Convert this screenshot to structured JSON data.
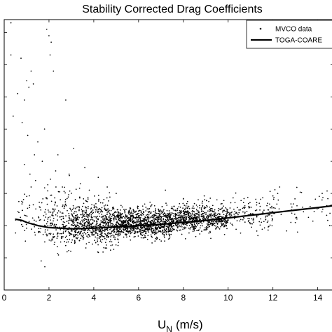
{
  "chart_data": {
    "type": "scatter",
    "title": "Stability Corrected Drag Coefficients",
    "xlabel": "U",
    "xlabel_subscript": "N",
    "xlabel_unit": "(m/s)",
    "ylabel": "",
    "xlim": [
      0,
      14.7
    ],
    "ylim": [
      0,
      4.2
    ],
    "x_ticks": [
      "0",
      "2",
      "4",
      "6",
      "8",
      "10",
      "12",
      "14"
    ],
    "y_ticks": [
      0.5,
      1.0,
      1.5,
      2.0,
      2.5,
      3.0,
      3.5,
      4.0
    ],
    "grid": false,
    "legend_position": "top-right",
    "series": [
      {
        "name": "MVCO data",
        "kind": "scatter",
        "color": "#000000",
        "cloud": [
          {
            "x_min": 0.5,
            "x_max": 1.8,
            "y_mean": 1.15,
            "y_sd": 0.18,
            "count": 60
          },
          {
            "x_min": 1.8,
            "x_max": 3.0,
            "y_mean": 1.05,
            "y_sd": 0.22,
            "count": 200
          },
          {
            "x_min": 3.0,
            "x_max": 5.0,
            "y_mean": 1.0,
            "y_sd": 0.16,
            "count": 650
          },
          {
            "x_min": 5.0,
            "x_max": 7.5,
            "y_mean": 1.02,
            "y_sd": 0.11,
            "count": 1000
          },
          {
            "x_min": 7.5,
            "x_max": 10.0,
            "y_mean": 1.1,
            "y_sd": 0.1,
            "count": 700
          },
          {
            "x_min": 10.0,
            "x_max": 12.0,
            "y_mean": 1.17,
            "y_sd": 0.12,
            "count": 150
          },
          {
            "x_min": 12.0,
            "x_max": 14.6,
            "y_mean": 1.27,
            "y_sd": 0.14,
            "count": 50
          }
        ],
        "points": [
          {
            "x": 0.3,
            "y": 3.65
          },
          {
            "x": 0.6,
            "y": 3.05
          },
          {
            "x": 0.75,
            "y": 3.6
          },
          {
            "x": 0.9,
            "y": 2.95
          },
          {
            "x": 1.0,
            "y": 3.25
          },
          {
            "x": 1.1,
            "y": 3.15
          },
          {
            "x": 1.2,
            "y": 3.4
          },
          {
            "x": 1.3,
            "y": 3.2
          },
          {
            "x": 0.8,
            "y": 2.6
          },
          {
            "x": 1.05,
            "y": 2.4
          },
          {
            "x": 1.35,
            "y": 2.1
          },
          {
            "x": 0.9,
            "y": 1.95
          },
          {
            "x": 1.15,
            "y": 1.8
          },
          {
            "x": 1.2,
            "y": 1.6
          },
          {
            "x": 1.4,
            "y": 1.7
          },
          {
            "x": 0.4,
            "y": 2.7
          },
          {
            "x": 1.5,
            "y": 2.3
          },
          {
            "x": 1.7,
            "y": 2.0
          },
          {
            "x": 1.8,
            "y": 2.5
          },
          {
            "x": 1.9,
            "y": 4.05
          },
          {
            "x": 2.0,
            "y": 3.95
          },
          {
            "x": 2.1,
            "y": 3.85
          },
          {
            "x": 2.2,
            "y": 3.4
          },
          {
            "x": 2.05,
            "y": 3.65
          },
          {
            "x": 2.3,
            "y": 1.85
          },
          {
            "x": 2.4,
            "y": 2.1
          },
          {
            "x": 2.6,
            "y": 1.6
          },
          {
            "x": 2.75,
            "y": 2.95
          },
          {
            "x": 2.9,
            "y": 1.8
          },
          {
            "x": 3.1,
            "y": 2.2
          },
          {
            "x": 3.4,
            "y": 1.65
          },
          {
            "x": 3.6,
            "y": 1.9
          },
          {
            "x": 3.8,
            "y": 1.55
          },
          {
            "x": 4.2,
            "y": 1.75
          },
          {
            "x": 4.6,
            "y": 1.6
          },
          {
            "x": 5.0,
            "y": 1.5
          },
          {
            "x": 0.3,
            "y": 4.15
          },
          {
            "x": 1.6,
            "y": 0.9
          },
          {
            "x": 1.65,
            "y": 0.45
          },
          {
            "x": 2.7,
            "y": 1.05
          },
          {
            "x": 7.2,
            "y": 1.55
          },
          {
            "x": 8.0,
            "y": 1.42
          },
          {
            "x": 9.5,
            "y": 1.4
          },
          {
            "x": 13.1,
            "y": 0.9
          },
          {
            "x": 12.8,
            "y": 1.05
          },
          {
            "x": 14.2,
            "y": 1.5
          },
          {
            "x": 14.6,
            "y": 1.32
          },
          {
            "x": 12.3,
            "y": 1.6
          }
        ]
      },
      {
        "name": "TOGA-COARE",
        "kind": "line",
        "color": "#000000",
        "x": [
          0.5,
          0.8,
          1.0,
          1.5,
          2.0,
          3.0,
          4.0,
          5.0,
          6.0,
          7.0,
          8.0,
          9.0,
          10.0,
          11.0,
          12.0,
          13.0,
          14.0,
          14.7
        ],
        "y": [
          1.1,
          1.08,
          1.05,
          1.0,
          0.97,
          0.95,
          0.96,
          0.98,
          1.0,
          1.02,
          1.05,
          1.08,
          1.12,
          1.16,
          1.2,
          1.24,
          1.28,
          1.31
        ]
      }
    ]
  }
}
